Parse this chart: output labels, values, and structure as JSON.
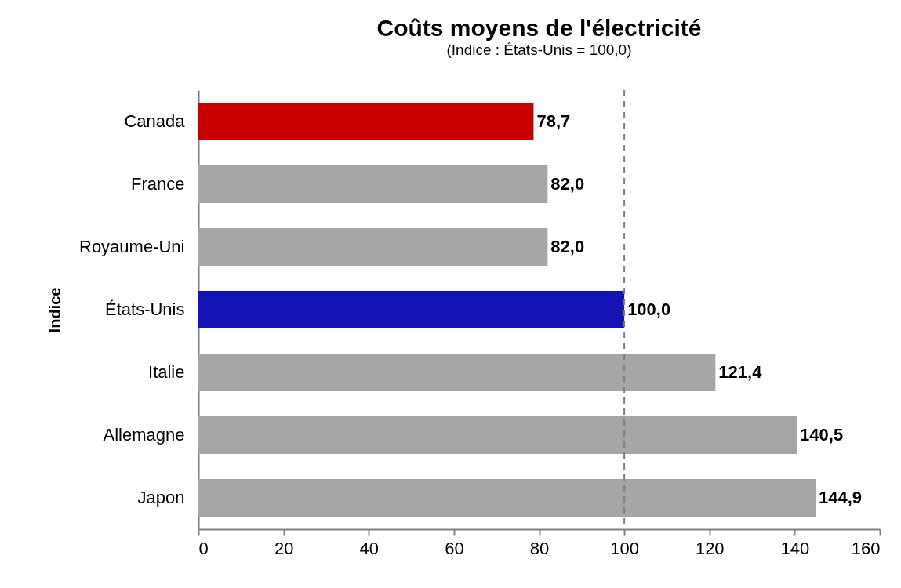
{
  "chart_data": {
    "type": "bar",
    "orientation": "horizontal",
    "title": "Coûts moyens de l'électricité",
    "subtitle": "(Indice : États-Unis = 100,0)",
    "ylabel": "Indice",
    "categories": [
      "Canada",
      "France",
      "Royaume-Uni",
      "États-Unis",
      "Italie",
      "Allemagne",
      "Japon"
    ],
    "values": [
      78.7,
      82.0,
      82.0,
      100.0,
      121.4,
      140.5,
      144.9
    ],
    "value_labels": [
      "78,7",
      "82,0",
      "82,0",
      "100,0",
      "121,4",
      "140,5",
      "144,9"
    ],
    "colors": [
      "#c80000",
      "#a6a6a6",
      "#a6a6a6",
      "#1414b4",
      "#a6a6a6",
      "#a6a6a6",
      "#a6a6a6"
    ],
    "xlim": [
      0,
      160
    ],
    "xticks": [
      0,
      20,
      40,
      60,
      80,
      100,
      120,
      140,
      160
    ],
    "ref_lines": [
      {
        "axis": "x",
        "value": 100,
        "color": "#808080",
        "line_style": "dashed"
      }
    ],
    "grid": false,
    "legend": false
  }
}
